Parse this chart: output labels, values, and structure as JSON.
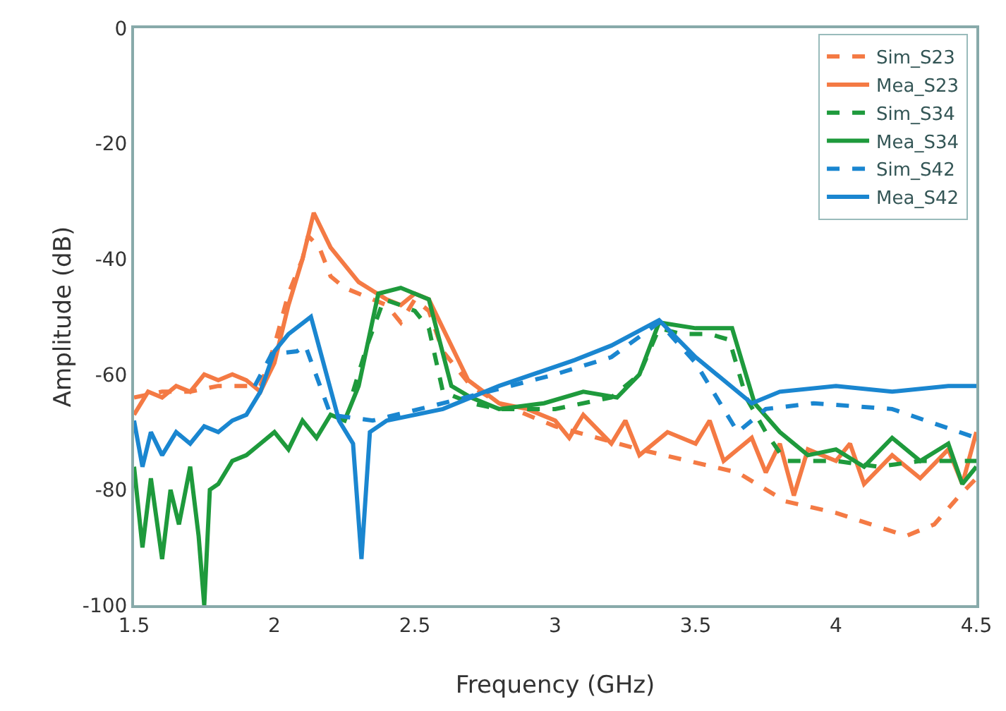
{
  "chart_data": {
    "type": "line",
    "xlabel": "Frequency (GHz)",
    "ylabel": "Amplitude (dB)",
    "xlim": [
      1.5,
      4.5
    ],
    "ylim": [
      -100,
      0
    ],
    "xticks": [
      1.5,
      2,
      2.5,
      3,
      3.5,
      4,
      4.5
    ],
    "yticks": [
      0,
      -20,
      -40,
      -60,
      -80,
      -100
    ],
    "grid": false,
    "legend": "top right",
    "marker": "none",
    "series": [
      {
        "name": "Sim_S23",
        "color": "#f47a44",
        "line_style": "dashed",
        "x": [
          1.5,
          1.6,
          1.7,
          1.8,
          1.9,
          1.95,
          2.0,
          2.05,
          2.1,
          2.12,
          2.16,
          2.2,
          2.25,
          2.3,
          2.35,
          2.4,
          2.45,
          2.5,
          2.55,
          2.6,
          2.7,
          2.8,
          3.0,
          3.3,
          3.65,
          3.82,
          4.0,
          4.25,
          4.35,
          4.44,
          4.5
        ],
        "values": [
          -64,
          -63,
          -63,
          -62,
          -62,
          -62,
          -55,
          -46,
          -40,
          -36,
          -38,
          -43,
          -45,
          -46,
          -47,
          -48,
          -51,
          -47,
          -49,
          -56,
          -62,
          -65,
          -69,
          -73,
          -77,
          -82,
          -84,
          -88,
          -86,
          -81,
          -78
        ]
      },
      {
        "name": "Mea_S23",
        "color": "#f47a44",
        "line_style": "solid",
        "x": [
          1.5,
          1.55,
          1.6,
          1.65,
          1.7,
          1.75,
          1.8,
          1.85,
          1.9,
          1.95,
          2.0,
          2.05,
          2.1,
          2.14,
          2.2,
          2.3,
          2.35,
          2.4,
          2.45,
          2.5,
          2.55,
          2.6,
          2.69,
          2.8,
          2.9,
          3.0,
          3.05,
          3.1,
          3.2,
          3.25,
          3.3,
          3.4,
          3.5,
          3.55,
          3.6,
          3.7,
          3.75,
          3.8,
          3.85,
          3.9,
          4.0,
          4.05,
          4.1,
          4.2,
          4.3,
          4.4,
          4.45,
          4.5
        ],
        "values": [
          -67,
          -63,
          -64,
          -62,
          -63,
          -60,
          -61,
          -60,
          -61,
          -63,
          -58,
          -48,
          -40,
          -32,
          -38,
          -44,
          -45.5,
          -47,
          -48,
          -46,
          -47,
          -52,
          -61,
          -65,
          -66,
          -68,
          -71,
          -67,
          -72,
          -68,
          -74,
          -70,
          -72,
          -68,
          -75,
          -71,
          -77,
          -72,
          -81,
          -73,
          -75,
          -72,
          -79,
          -74,
          -78,
          -73,
          -79,
          -70
        ]
      },
      {
        "name": "Sim_S34",
        "color": "#1e9a3c",
        "line_style": "dashed",
        "x": [
          2.28,
          2.33,
          2.39,
          2.45,
          2.5,
          2.55,
          2.6,
          2.7,
          2.8,
          3.0,
          3.2,
          3.3,
          3.37,
          3.45,
          3.55,
          3.62,
          3.68,
          3.75,
          3.82,
          4.0,
          4.15,
          4.3,
          4.5
        ],
        "values": [
          -63,
          -55,
          -47,
          -48,
          -49,
          -52,
          -63,
          -65,
          -66,
          -66,
          -64,
          -60,
          -52,
          -53,
          -53,
          -54,
          -64,
          -70,
          -75,
          -75,
          -76,
          -75,
          -75
        ]
      },
      {
        "name": "Mea_S34",
        "color": "#1e9a3c",
        "line_style": "solid",
        "x": [
          1.5,
          1.53,
          1.56,
          1.6,
          1.63,
          1.66,
          1.7,
          1.73,
          1.75,
          1.77,
          1.8,
          1.85,
          1.9,
          1.95,
          2.0,
          2.05,
          2.1,
          2.15,
          2.2,
          2.25,
          2.3,
          2.37,
          2.45,
          2.55,
          2.63,
          2.7,
          2.8,
          2.96,
          3.1,
          3.22,
          3.3,
          3.37,
          3.5,
          3.63,
          3.71,
          3.8,
          3.9,
          4.0,
          4.1,
          4.2,
          4.3,
          4.4,
          4.45,
          4.5
        ],
        "values": [
          -76,
          -90,
          -78,
          -92,
          -80,
          -86,
          -76,
          -88,
          -100,
          -80,
          -79,
          -75,
          -74,
          -72,
          -70,
          -73,
          -68,
          -71,
          -67,
          -68,
          -62,
          -46,
          -45,
          -47,
          -62,
          -64,
          -66,
          -65,
          -63,
          -64,
          -60,
          -51,
          -52,
          -52,
          -65,
          -70,
          -74,
          -73,
          -76,
          -71,
          -75,
          -72,
          -79,
          -76
        ]
      },
      {
        "name": "Sim_S42",
        "color": "#1a86d0",
        "line_style": "dashed",
        "x": [
          1.93,
          1.99,
          2.08,
          2.11,
          2.2,
          2.35,
          2.6,
          3.0,
          3.2,
          3.37,
          3.5,
          3.65,
          3.75,
          3.92,
          4.2,
          4.5
        ],
        "values": [
          -62,
          -56.5,
          -56,
          -55,
          -67,
          -68,
          -65,
          -60,
          -57,
          -51,
          -58,
          -70,
          -66,
          -65,
          -66,
          -71
        ]
      },
      {
        "name": "Mea_S42",
        "color": "#1a86d0",
        "line_style": "solid",
        "x": [
          1.5,
          1.53,
          1.56,
          1.6,
          1.65,
          1.7,
          1.75,
          1.8,
          1.85,
          1.9,
          1.95,
          2.0,
          2.05,
          2.13,
          2.23,
          2.28,
          2.31,
          2.34,
          2.4,
          2.6,
          2.8,
          3.07,
          3.2,
          3.37,
          3.5,
          3.7,
          3.8,
          4.0,
          4.2,
          4.4,
          4.5
        ],
        "values": [
          -68,
          -76,
          -70,
          -74,
          -70,
          -72,
          -69,
          -70,
          -68,
          -67,
          -63,
          -56,
          -53,
          -50,
          -68,
          -72,
          -92,
          -70,
          -68,
          -66,
          -62,
          -57.5,
          -55,
          -50.6,
          -57,
          -65,
          -63,
          -62,
          -63,
          -62,
          -62
        ]
      }
    ]
  }
}
